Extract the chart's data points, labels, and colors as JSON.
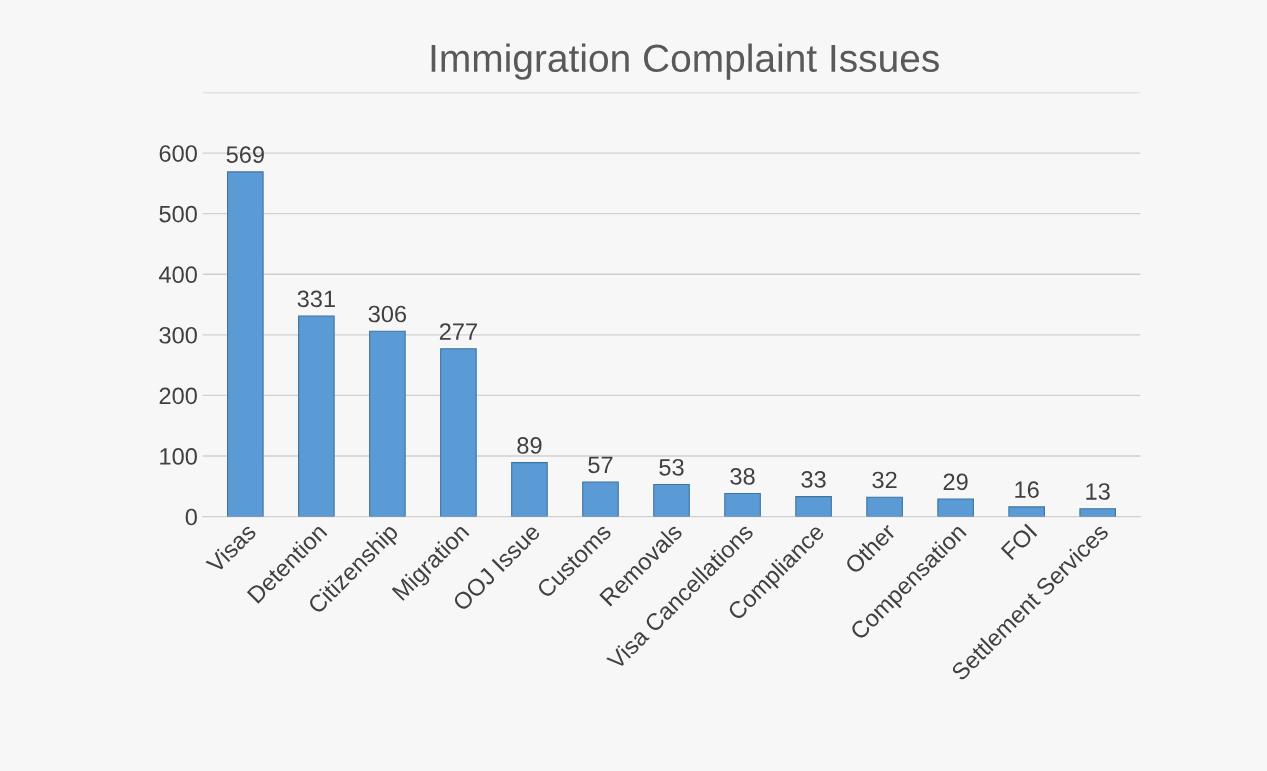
{
  "chart_data": {
    "type": "bar",
    "title": "Immigration Complaint Issues",
    "categories": [
      "Visas",
      "Detention",
      "Citizenship",
      "Migration",
      "OOJ Issue",
      "Customs",
      "Removals",
      "Visa Cancellations",
      "Compliance",
      "Other",
      "Compensation",
      "FOI",
      "Settlement Services"
    ],
    "values": [
      569,
      331,
      306,
      277,
      89,
      57,
      53,
      38,
      33,
      32,
      29,
      16,
      13
    ],
    "color": "#5b9bd5",
    "ylim": [
      0,
      700
    ],
    "yticks": [
      0,
      100,
      200,
      300,
      400,
      500,
      600,
      {
        "value": 700,
        "label": null
      }
    ],
    "grid": "y",
    "data_labels": true
  }
}
